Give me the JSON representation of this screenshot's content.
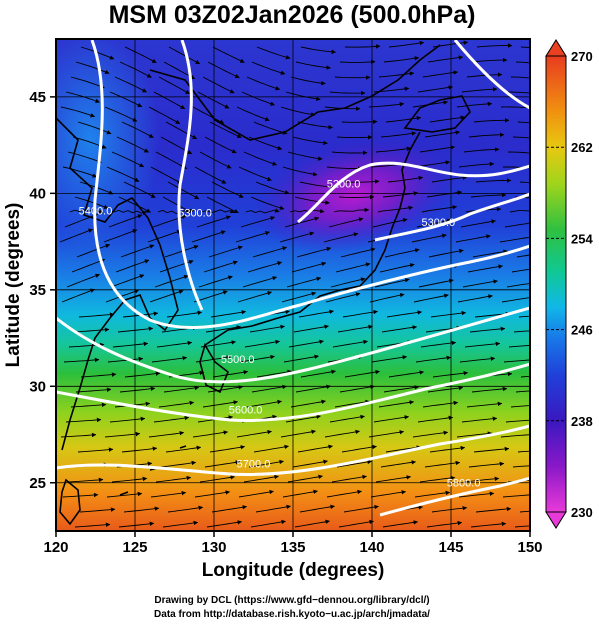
{
  "chart_data": {
    "type": "map",
    "title": "MSM 03Z02Jan2026 (500.0hPa)",
    "xlabel": "Longitude (degrees)",
    "ylabel": "Latitude  (degrees)",
    "xlim": [
      120,
      150
    ],
    "ylim": [
      22.5,
      48
    ],
    "xticks": [
      "120",
      "125",
      "130",
      "135",
      "140",
      "145",
      "150"
    ],
    "xtick_values": [
      120,
      125,
      130,
      135,
      140,
      145,
      150
    ],
    "yticks": [
      "25",
      "30",
      "35",
      "40",
      "45"
    ],
    "ytick_values": [
      25,
      30,
      35,
      40,
      45
    ],
    "colorbar": {
      "min": 230,
      "max": 270,
      "ticks": [
        "230",
        "238",
        "246",
        "254",
        "262",
        "270"
      ],
      "tick_values": [
        230,
        238,
        246,
        254,
        262,
        270
      ],
      "colors": [
        "#e030d8",
        "#8a18c8",
        "#3a18c0",
        "#2030d8",
        "#1878e8",
        "#10c0e0",
        "#10c890",
        "#30c040",
        "#78d020",
        "#d0d010",
        "#f0a010",
        "#f07010",
        "#e84020"
      ]
    },
    "contours": [
      {
        "label": "5400.0",
        "lon": 122.5,
        "lat": 38.9
      },
      {
        "label": "5300.0",
        "lon": 128.8,
        "lat": 38.8
      },
      {
        "label": "5200.0",
        "lon": 138.2,
        "lat": 40.3
      },
      {
        "label": "5300.0",
        "lon": 144.2,
        "lat": 38.3
      },
      {
        "label": "5500.0",
        "lon": 131.5,
        "lat": 31.2
      },
      {
        "label": "5600.0",
        "lon": 132.0,
        "lat": 28.6
      },
      {
        "label": "5700.0",
        "lon": 132.5,
        "lat": 25.8
      },
      {
        "label": "5800.0",
        "lon": 145.8,
        "lat": 24.8
      }
    ]
  },
  "credits": {
    "drawing": "Drawing by DCL (https://www.gfd−dennou.org/library/dcl/)",
    "data": "Data from http://database.rish.kyoto−u.ac.jp/arch/jmadata/"
  }
}
